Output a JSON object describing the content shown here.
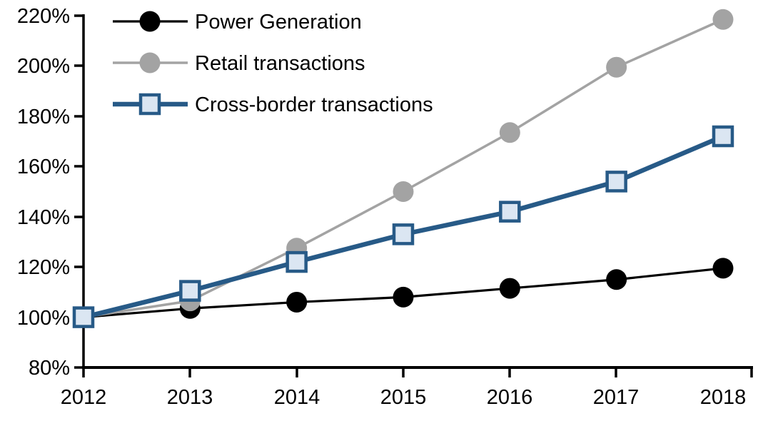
{
  "chart_data": {
    "type": "line",
    "title": "",
    "categories": [
      "2012",
      "2013",
      "2014",
      "2015",
      "2016",
      "2017",
      "2018"
    ],
    "y_axis": {
      "unit": "%",
      "min": 80,
      "max": 220,
      "step": 20,
      "tick_labels_top_to_bottom": [
        "220%",
        "200%",
        "180%",
        "160%",
        "140%",
        "120%",
        "100%",
        "80%"
      ]
    },
    "x_axis": {
      "tick_labels": [
        "2012",
        "2013",
        "2014",
        "2015",
        "2016",
        "2017",
        "2018"
      ]
    },
    "grid": false,
    "legend": {
      "position": "top-left",
      "items": [
        "Power Generation",
        "Retail transactions",
        "Cross-border transactions"
      ]
    },
    "series": [
      {
        "id": "power-generation",
        "name": "Power Generation",
        "color": "#000000",
        "line_width": 3.2,
        "marker": "circle",
        "marker_fill": "#000000",
        "marker_size": 29,
        "values": [
          100,
          103.5,
          106,
          108,
          111.5,
          115,
          119.5
        ]
      },
      {
        "id": "retail-transactions",
        "name": "Retail transactions",
        "color": "#A3A3A3",
        "line_width": 3.5,
        "marker": "circle",
        "marker_fill": "#A3A3A3",
        "marker_size": 29,
        "values": [
          100,
          106.5,
          127.5,
          150,
          173.5,
          199.5,
          218.5
        ]
      },
      {
        "id": "cross-border-transactions",
        "name": "Cross-border transactions",
        "color": "#275A87",
        "line_width": 6.5,
        "marker": "square",
        "marker_fill": "#DBE6F2",
        "marker_size": 26,
        "values": [
          100,
          110.5,
          122,
          133,
          142,
          154,
          172
        ]
      }
    ]
  }
}
